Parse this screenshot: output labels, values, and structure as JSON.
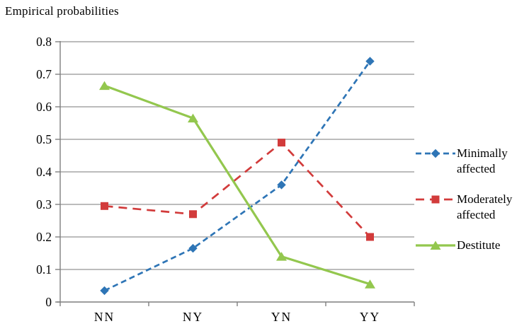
{
  "chart_data": {
    "type": "line",
    "title": "Empirical probabilities",
    "categories": [
      "NN",
      "NY",
      "YN",
      "YY"
    ],
    "series": [
      {
        "name": "Minimally affected",
        "color": "#2E75B6",
        "line_style": "dashed",
        "dash": "8 5",
        "marker": "diamond",
        "values": [
          0.035,
          0.165,
          0.36,
          0.74
        ]
      },
      {
        "name": "Moderately affected",
        "color": "#D23B3B",
        "line_style": "dashed",
        "dash": "12 8",
        "marker": "square",
        "values": [
          0.295,
          0.27,
          0.49,
          0.2
        ]
      },
      {
        "name": "Destitute",
        "color": "#93C74E",
        "line_style": "solid",
        "dash": "",
        "marker": "triangle",
        "values": [
          0.665,
          0.565,
          0.14,
          0.055
        ]
      }
    ],
    "ylim": [
      0,
      0.8
    ],
    "ytick_step": 0.1,
    "ytick_labels": [
      "0",
      "0.1",
      "0.2",
      "0.3",
      "0.4",
      "0.5",
      "0.6",
      "0.7",
      "0.8"
    ],
    "grid": "horizontal",
    "legend_position": "right",
    "axis_color": "#7F7F7F",
    "grid_color": "#A6A6A6",
    "text_color": "#000000"
  }
}
